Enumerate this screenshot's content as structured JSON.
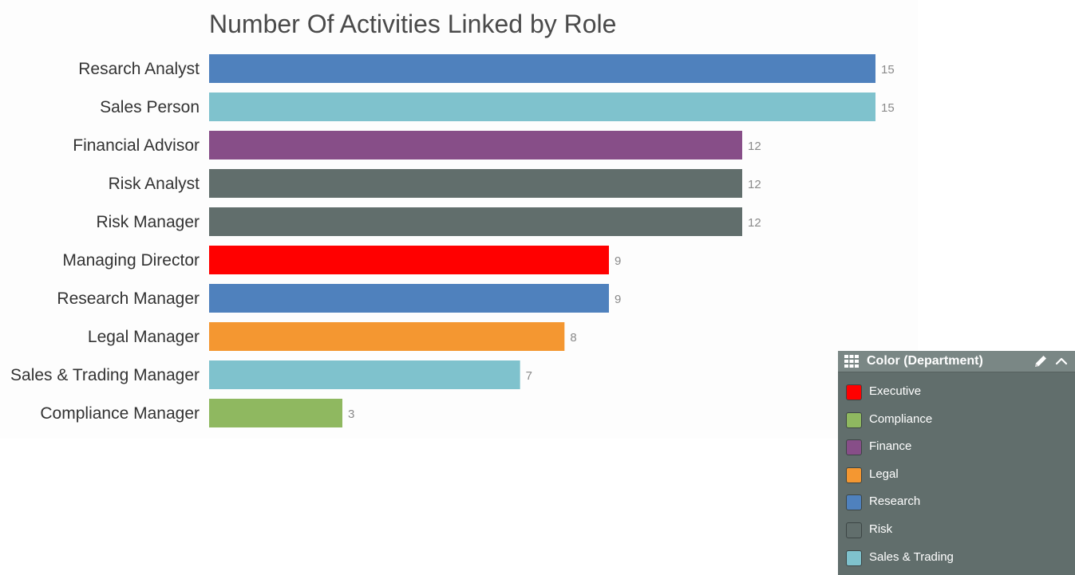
{
  "chart_data": {
    "type": "bar",
    "orientation": "horizontal",
    "title": "Number Of Activities Linked by Role",
    "xlabel": "",
    "ylabel": "",
    "xlim": [
      0,
      15
    ],
    "grid": false,
    "legend_position": "bottom-right",
    "categories": [
      "Resarch Analyst",
      "Sales Person",
      "Financial Advisor",
      "Risk Analyst",
      "Risk Manager",
      "Managing Director",
      "Research Manager",
      "Legal Manager",
      "Sales & Trading Manager",
      "Compliance Manager"
    ],
    "values": [
      15,
      15,
      12,
      12,
      12,
      9,
      9,
      8,
      7,
      3
    ],
    "departments": [
      "Research",
      "Sales & Trading",
      "Finance",
      "Risk",
      "Risk",
      "Executive",
      "Research",
      "Legal",
      "Sales & Trading",
      "Compliance"
    ]
  },
  "legend": {
    "title": "Color (Department)",
    "grid_icon": "grid-icon",
    "edit_icon": "pencil-icon",
    "collapse_icon": "chevron-up-icon",
    "items": [
      {
        "label": "Executive",
        "color": "#ff0000"
      },
      {
        "label": "Compliance",
        "color": "#8fb860"
      },
      {
        "label": "Finance",
        "color": "#874e88"
      },
      {
        "label": "Legal",
        "color": "#f49731"
      },
      {
        "label": "Research",
        "color": "#4f81bd"
      },
      {
        "label": "Risk",
        "color": "#616e6c"
      },
      {
        "label": "Sales & Trading",
        "color": "#7fc2cd"
      }
    ]
  }
}
